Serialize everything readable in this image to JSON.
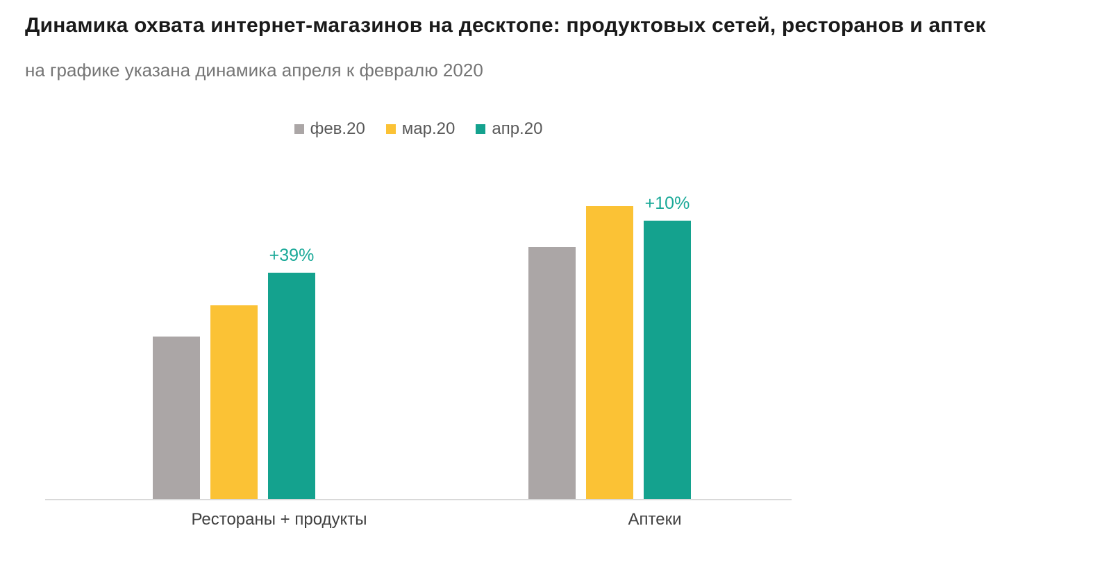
{
  "chart_data": {
    "type": "bar",
    "title": "Динамика охвата интернет-магазинов на десктопе: продуктовых сетей, ресторанов и аптек",
    "subtitle": "на графике указана динамика апреля к февралю 2020",
    "categories": [
      "Рестораны + продукты",
      "Аптеки"
    ],
    "series": [
      {
        "name": "фев.20",
        "color": "#aba6a6",
        "values": [
          100,
          155
        ]
      },
      {
        "name": "мар.20",
        "color": "#fbc235",
        "values": [
          119,
          180
        ]
      },
      {
        "name": "апр.20",
        "color": "#14a28e",
        "values": [
          139,
          171
        ]
      }
    ],
    "annotations": [
      {
        "category": "Рестораны + продукты",
        "text": "+39%",
        "color": "#1aa998"
      },
      {
        "category": "Аптеки",
        "text": "+10%",
        "color": "#1aa998"
      }
    ],
    "ylim": [
      0,
      200
    ],
    "y_axis_visible": false,
    "gridlines": false,
    "legend_position": "top-center",
    "baseline_color": "#d9d9d9"
  }
}
